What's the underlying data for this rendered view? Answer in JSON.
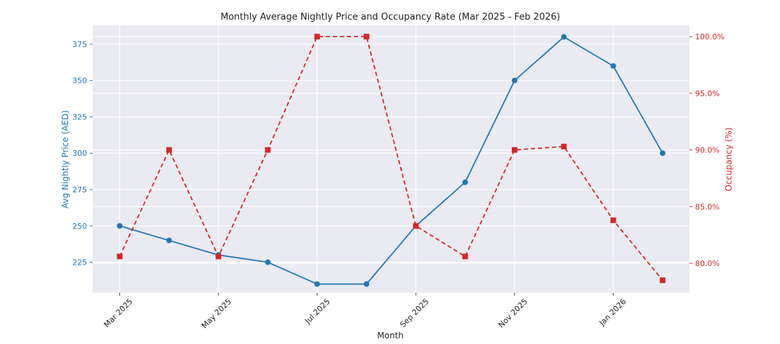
{
  "chart_data": {
    "type": "line",
    "title": "Monthly Average Nightly Price and Occupancy Rate (Mar 2025 - Feb 2026)",
    "xlabel": "Month",
    "x": [
      "2025-03",
      "2025-04",
      "2025-05",
      "2025-06",
      "2025-07",
      "2025-08",
      "2025-09",
      "2025-10",
      "2025-11",
      "2025-12",
      "2026-01",
      "2026-02"
    ],
    "x_tick_labels": [
      "Mar 2025",
      "May 2025",
      "Jul 2025",
      "Sep 2025",
      "Nov 2025",
      "Jan 2026"
    ],
    "grid": true,
    "series": [
      {
        "axis": "left",
        "ylabel": "Avg Nightly Price (AED)",
        "color": "#1f77b4",
        "style": "solid",
        "marker": "circle",
        "values": [
          250,
          240,
          230,
          225,
          210,
          210,
          250,
          280,
          350,
          380,
          360,
          300
        ],
        "ylim": [
          204,
          388
        ],
        "ticks": [
          225,
          250,
          275,
          300,
          325,
          350,
          375
        ],
        "tick_labels": [
          "225",
          "250",
          "275",
          "300",
          "325",
          "350",
          "375"
        ]
      },
      {
        "axis": "right",
        "ylabel": "Occupancy (%)",
        "color": "#d62728",
        "style": "dashed",
        "marker": "square",
        "values": [
          80.6,
          90.0,
          80.6,
          90.0,
          100.0,
          100.0,
          83.3,
          80.6,
          90.0,
          90.3,
          83.8,
          78.5
        ],
        "ylim": [
          77.4,
          101.0
        ],
        "ticks": [
          80,
          85,
          90,
          95,
          100
        ],
        "tick_labels": [
          "80.0%",
          "85.0%",
          "90.0%",
          "95.0%",
          "100.0%"
        ]
      }
    ]
  }
}
